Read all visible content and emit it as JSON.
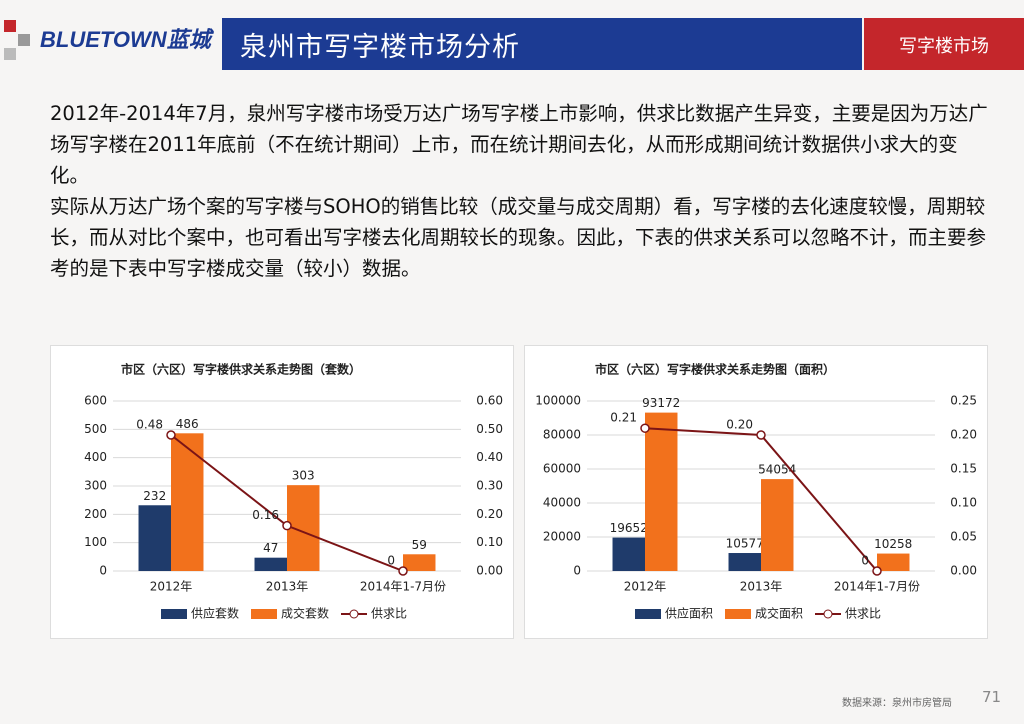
{
  "header": {
    "logo": "BLUETOWN蓝城",
    "title": "泉州市写字楼市场分析",
    "tag": "写字楼市场"
  },
  "paragraphs": [
    "2012年-2014年7月，泉州写字楼市场受万达广场写字楼上市影响，供求比数据产生异变，主要是因为万达广场写字楼在2011年底前（不在统计期间）上市，而在统计期间去化，从而形成期间统计数据供小求大的变化。",
    "实际从万达广场个案的写字楼与SOHO的销售比较（成交量与成交周期）看，写字楼的去化速度较慢，周期较长，而从对比个案中，也可看出写字楼去化周期较长的现象。因此，下表的供求关系可以忽略不计，而主要参考的是下表中写字楼成交量（较小）数据。"
  ],
  "chart_data": [
    {
      "type": "bar",
      "title": "市区（六区）写字楼供求关系走势图（套数）",
      "categories": [
        "2012年",
        "2013年",
        "2014年1-7月份"
      ],
      "series": [
        {
          "name": "供应套数",
          "color": "#1f3b6b",
          "values": [
            232,
            47,
            null
          ]
        },
        {
          "name": "成交套数",
          "color": "#f2711c",
          "values": [
            486,
            303,
            59
          ]
        },
        {
          "name": "供求比",
          "color": "#7b1416",
          "type": "line",
          "axis": "y2",
          "values": [
            0.48,
            0.16,
            0
          ]
        }
      ],
      "ylim": [
        0,
        600
      ],
      "yticks": [
        0,
        100,
        200,
        300,
        400,
        500,
        600
      ],
      "y2lim": [
        0,
        0.6
      ],
      "y2ticks": [
        {
          "value": 0,
          "label": "0.00"
        },
        {
          "value": 0.1,
          "label": "0.10"
        },
        {
          "value": 0.2,
          "label": "0.20"
        },
        {
          "value": 0.3,
          "label": "0.30"
        },
        {
          "value": 0.4,
          "label": "0.40"
        },
        {
          "value": 0.5,
          "label": "0.50"
        },
        {
          "value": 0.6,
          "label": "0.60"
        }
      ],
      "grid": true,
      "legend": "bottom"
    },
    {
      "type": "bar",
      "title": "市区（六区）写字楼供求关系走势图（面积）",
      "categories": [
        "2012年",
        "2013年",
        "2014年1-7月份"
      ],
      "series": [
        {
          "name": "供应面积",
          "color": "#1f3b6b",
          "values": [
            19652,
            10577,
            null
          ]
        },
        {
          "name": "成交面积",
          "color": "#f2711c",
          "values": [
            93172,
            54054,
            10258
          ]
        },
        {
          "name": "供求比",
          "color": "#7b1416",
          "type": "line",
          "axis": "y2",
          "values": [
            0.21,
            0.2,
            0
          ],
          "value_labels": [
            "0.21",
            "0.20",
            "0"
          ]
        }
      ],
      "ylim": [
        0,
        100000
      ],
      "yticks": [
        0,
        20000,
        40000,
        60000,
        80000,
        100000
      ],
      "y2lim": [
        0,
        0.25
      ],
      "y2ticks": [
        {
          "value": 0,
          "label": "0.00"
        },
        0.05,
        {
          "value": 0.1,
          "label": "0.10"
        },
        0.15,
        {
          "value": 0.2,
          "label": "0.20"
        },
        0.25
      ],
      "grid": true,
      "legend": "bottom"
    }
  ],
  "footer": {
    "source": "数据来源：泉州市房管局",
    "page": "71"
  }
}
